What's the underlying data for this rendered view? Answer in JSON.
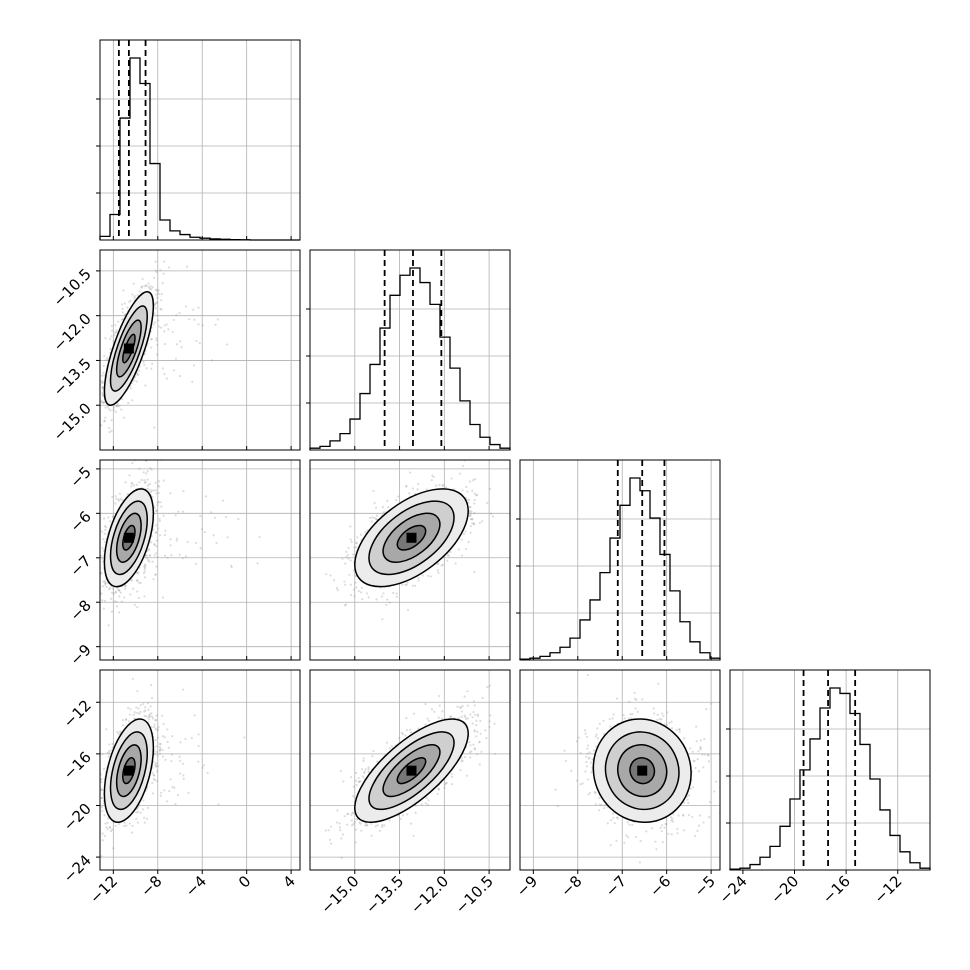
{
  "chart_data": {
    "type": "corner",
    "title": "",
    "n_params": 4,
    "params": [
      {
        "range": [
          -13.2,
          4.8
        ],
        "ticks": [
          -12,
          -8,
          -4,
          0,
          4
        ],
        "tick_labels": [
          "−12",
          "−8",
          "−4",
          "0",
          "4"
        ],
        "quantiles": [
          -11.5,
          -10.6,
          -9.1
        ],
        "hist_bins": 20,
        "hist": [
          0.02,
          0.14,
          0.67,
          1.0,
          0.86,
          0.42,
          0.11,
          0.05,
          0.03,
          0.015,
          0.01,
          0.006,
          0.004,
          0.002,
          0.001,
          0,
          0,
          0,
          0,
          0
        ]
      },
      {
        "range": [
          -16.5,
          -9.8
        ],
        "ticks": [
          -15.0,
          -13.5,
          -12.0,
          -10.5
        ],
        "tick_labels": [
          "−15.0",
          "−13.5",
          "−12.0",
          "−10.5"
        ],
        "quantiles": [
          -14.0,
          -13.05,
          -12.1
        ],
        "hist_bins": 20,
        "hist": [
          0.01,
          0.02,
          0.05,
          0.09,
          0.17,
          0.31,
          0.47,
          0.67,
          0.85,
          0.96,
          1.0,
          0.92,
          0.8,
          0.62,
          0.45,
          0.27,
          0.14,
          0.07,
          0.03,
          0.01
        ]
      },
      {
        "range": [
          -9.3,
          -4.8
        ],
        "ticks": [
          -9,
          -8,
          -7,
          -6,
          -5
        ],
        "tick_labels": [
          "−9",
          "−8",
          "−7",
          "−6",
          "−5"
        ],
        "quantiles": [
          -7.1,
          -6.55,
          -6.05
        ],
        "hist_bins": 20,
        "hist": [
          0.005,
          0.01,
          0.02,
          0.04,
          0.07,
          0.12,
          0.22,
          0.33,
          0.48,
          0.67,
          0.85,
          1.0,
          0.93,
          0.78,
          0.58,
          0.38,
          0.21,
          0.1,
          0.04,
          0.01
        ]
      },
      {
        "range": [
          -25.0,
          -9.5
        ],
        "ticks": [
          -24,
          -20,
          -16,
          -12
        ],
        "tick_labels": [
          "−24",
          "−20",
          "−16",
          "−12"
        ],
        "quantiles": [
          -19.3,
          -17.4,
          -15.3
        ],
        "hist_bins": 20,
        "hist": [
          0.005,
          0.01,
          0.03,
          0.07,
          0.13,
          0.24,
          0.39,
          0.55,
          0.72,
          0.89,
          1.0,
          0.97,
          0.86,
          0.69,
          0.5,
          0.33,
          0.19,
          0.1,
          0.04,
          0.01
        ]
      }
    ],
    "pairs": [
      {
        "row": 1,
        "col": 0,
        "mean": [
          -10.6,
          -13.1
        ],
        "sd": [
          1.1,
          0.95
        ],
        "rho": 0.75
      },
      {
        "row": 2,
        "col": 0,
        "mean": [
          -10.6,
          -6.55
        ],
        "sd": [
          1.1,
          0.55
        ],
        "rho": 0.5
      },
      {
        "row": 2,
        "col": 1,
        "mean": [
          -13.1,
          -6.55
        ],
        "sd": [
          0.95,
          0.55
        ],
        "rho": 0.55
      },
      {
        "row": 3,
        "col": 0,
        "mean": [
          -10.6,
          -17.3
        ],
        "sd": [
          1.1,
          2.0
        ],
        "rho": 0.45
      },
      {
        "row": 3,
        "col": 1,
        "mean": [
          -13.1,
          -17.3
        ],
        "sd": [
          0.95,
          2.0
        ],
        "rho": 0.72
      },
      {
        "row": 3,
        "col": 2,
        "mean": [
          -6.55,
          -17.3
        ],
        "sd": [
          0.55,
          2.0
        ],
        "rho": -0.05
      }
    ],
    "contour_levels_sigma": [
      0.5,
      1.0,
      1.5,
      2.0
    ],
    "grid": true,
    "legend": "none"
  }
}
